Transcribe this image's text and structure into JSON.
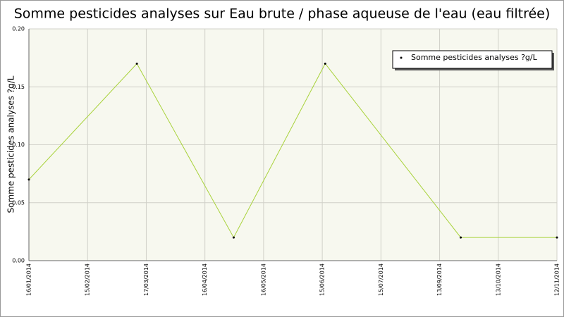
{
  "chart_data": {
    "type": "line",
    "title": "Somme pesticides analyses sur Eau brute / phase aqueuse de l'eau (eau filtrée)",
    "y_label": "Somme pesticides analyses ?g/L",
    "xlim": [
      0,
      9
    ],
    "xticks": [
      {
        "value": 0,
        "label": "16/01/2014"
      },
      {
        "value": 1,
        "label": "15/02/2014"
      },
      {
        "value": 2,
        "label": "17/03/2014"
      },
      {
        "value": 3,
        "label": "16/04/2014"
      },
      {
        "value": 4,
        "label": "16/05/2014"
      },
      {
        "value": 5,
        "label": "15/06/2014"
      },
      {
        "value": 6,
        "label": "15/07/2014"
      },
      {
        "value": 7,
        "label": "13/09/2014"
      },
      {
        "value": 8,
        "label": "13/10/2014"
      },
      {
        "value": 9,
        "label": "12/11/2014"
      }
    ],
    "ylim": [
      0,
      0.2
    ],
    "yticks": [
      {
        "value": 0,
        "label": "0.00"
      },
      0.05,
      {
        "value": 0.1,
        "label": "0.10"
      },
      0.15,
      {
        "value": 0.2,
        "label": "0.20"
      }
    ],
    "grid": true,
    "legend": "top-right",
    "series": [
      {
        "name": "Somme pesticides analyses ?g/L",
        "color": "#a8d23a",
        "x": [
          0,
          1.84,
          3.49,
          5.05,
          7.36,
          9
        ],
        "values": [
          0.07,
          0.17,
          0.02,
          0.17,
          0.02,
          0.02
        ]
      }
    ]
  }
}
